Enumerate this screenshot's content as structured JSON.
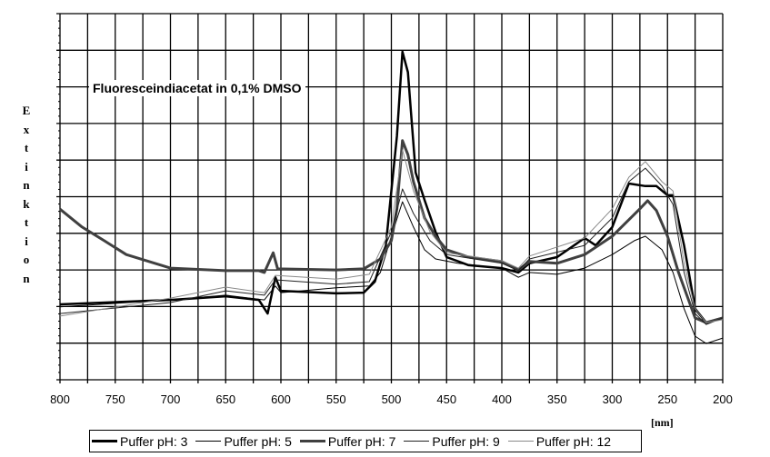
{
  "chart_data": {
    "type": "line",
    "title": "Fluoresceindiacetat in 0,1% DMSO",
    "xlabel": "[nm]",
    "ylabel": "Extinktion",
    "xlim": [
      800,
      200
    ],
    "x_reversed": true,
    "ylim": [
      0,
      10
    ],
    "xticks": [
      "800",
      "750",
      "700",
      "650",
      "600",
      "550",
      "500",
      "450",
      "400",
      "350",
      "300",
      "250",
      "200"
    ],
    "xtick_values": [
      800,
      750,
      700,
      650,
      600,
      550,
      500,
      450,
      400,
      350,
      300,
      250,
      200
    ],
    "grid": true,
    "legend_position": "bottom",
    "series": [
      {
        "name": "Puffer pH: 3",
        "color": "#000000",
        "width": 2.5,
        "points": [
          [
            800,
            2.06
          ],
          [
            700,
            2.18
          ],
          [
            650,
            2.28
          ],
          [
            620,
            2.18
          ],
          [
            612,
            1.81
          ],
          [
            605,
            2.8
          ],
          [
            600,
            2.43
          ],
          [
            550,
            2.36
          ],
          [
            525,
            2.38
          ],
          [
            515,
            2.68
          ],
          [
            505,
            3.67
          ],
          [
            495,
            6.65
          ],
          [
            490,
            8.96
          ],
          [
            485,
            8.4
          ],
          [
            478,
            5.66
          ],
          [
            470,
            4.91
          ],
          [
            460,
            4.04
          ],
          [
            450,
            3.35
          ],
          [
            430,
            3.13
          ],
          [
            400,
            3.05
          ],
          [
            385,
            2.93
          ],
          [
            375,
            3.18
          ],
          [
            350,
            3.35
          ],
          [
            325,
            3.87
          ],
          [
            315,
            3.67
          ],
          [
            300,
            4.17
          ],
          [
            285,
            5.36
          ],
          [
            270,
            5.29
          ],
          [
            260,
            5.29
          ],
          [
            250,
            5.04
          ],
          [
            245,
            5.04
          ],
          [
            235,
            3.67
          ],
          [
            225,
            1.94
          ],
          [
            215,
            1.56
          ],
          [
            200,
            1.69
          ]
        ]
      },
      {
        "name": "Puffer pH: 5",
        "color": "#000000",
        "width": 1,
        "points": [
          [
            800,
            1.99
          ],
          [
            700,
            2.18
          ],
          [
            650,
            2.31
          ],
          [
            615,
            2.18
          ],
          [
            605,
            2.56
          ],
          [
            600,
            2.38
          ],
          [
            550,
            2.51
          ],
          [
            520,
            2.56
          ],
          [
            510,
            2.93
          ],
          [
            500,
            3.92
          ],
          [
            490,
            4.86
          ],
          [
            480,
            4.17
          ],
          [
            470,
            3.55
          ],
          [
            460,
            3.3
          ],
          [
            440,
            3.18
          ],
          [
            400,
            3.05
          ],
          [
            385,
            2.8
          ],
          [
            375,
            2.93
          ],
          [
            350,
            2.88
          ],
          [
            325,
            3.05
          ],
          [
            300,
            3.42
          ],
          [
            280,
            3.8
          ],
          [
            270,
            3.92
          ],
          [
            255,
            3.55
          ],
          [
            245,
            2.93
          ],
          [
            235,
            1.94
          ],
          [
            225,
            1.19
          ],
          [
            215,
            0.99
          ],
          [
            200,
            1.14
          ]
        ]
      },
      {
        "name": "Puffer pH: 7",
        "color": "#404040",
        "width": 3,
        "points": [
          [
            800,
            4.66
          ],
          [
            780,
            4.17
          ],
          [
            760,
            3.8
          ],
          [
            740,
            3.42
          ],
          [
            700,
            3.05
          ],
          [
            650,
            2.98
          ],
          [
            620,
            2.98
          ],
          [
            615,
            2.93
          ],
          [
            607,
            3.47
          ],
          [
            603,
            3.03
          ],
          [
            550,
            3.0
          ],
          [
            525,
            3.03
          ],
          [
            510,
            3.3
          ],
          [
            500,
            3.8
          ],
          [
            495,
            4.67
          ],
          [
            490,
            6.53
          ],
          [
            485,
            6.15
          ],
          [
            480,
            5.41
          ],
          [
            470,
            4.42
          ],
          [
            460,
            3.92
          ],
          [
            450,
            3.55
          ],
          [
            430,
            3.35
          ],
          [
            400,
            3.23
          ],
          [
            385,
            3.0
          ],
          [
            375,
            3.23
          ],
          [
            350,
            3.18
          ],
          [
            325,
            3.42
          ],
          [
            300,
            3.92
          ],
          [
            275,
            4.67
          ],
          [
            268,
            4.89
          ],
          [
            260,
            4.62
          ],
          [
            250,
            3.92
          ],
          [
            240,
            2.93
          ],
          [
            225,
            1.69
          ],
          [
            215,
            1.56
          ],
          [
            200,
            1.69
          ]
        ]
      },
      {
        "name": "Puffer pH: 9",
        "color": "#222222",
        "width": 1,
        "points": [
          [
            800,
            1.81
          ],
          [
            700,
            2.11
          ],
          [
            650,
            2.43
          ],
          [
            615,
            2.31
          ],
          [
            605,
            2.73
          ],
          [
            550,
            2.61
          ],
          [
            520,
            2.68
          ],
          [
            500,
            4.04
          ],
          [
            490,
            5.21
          ],
          [
            480,
            4.54
          ],
          [
            465,
            3.8
          ],
          [
            450,
            3.42
          ],
          [
            400,
            3.18
          ],
          [
            385,
            2.98
          ],
          [
            375,
            3.3
          ],
          [
            325,
            3.67
          ],
          [
            300,
            4.42
          ],
          [
            285,
            5.41
          ],
          [
            270,
            5.78
          ],
          [
            255,
            5.29
          ],
          [
            245,
            4.79
          ],
          [
            235,
            2.93
          ],
          [
            225,
            1.81
          ],
          [
            215,
            1.51
          ],
          [
            200,
            1.69
          ]
        ]
      },
      {
        "name": "Puffer pH: 12",
        "color": "#8a8a8a",
        "width": 1,
        "points": [
          [
            800,
            1.74
          ],
          [
            700,
            2.23
          ],
          [
            650,
            2.53
          ],
          [
            615,
            2.38
          ],
          [
            605,
            2.85
          ],
          [
            550,
            2.75
          ],
          [
            520,
            2.88
          ],
          [
            500,
            4.17
          ],
          [
            490,
            6.28
          ],
          [
            480,
            5.16
          ],
          [
            465,
            4.04
          ],
          [
            450,
            3.47
          ],
          [
            400,
            3.25
          ],
          [
            385,
            3.05
          ],
          [
            375,
            3.38
          ],
          [
            325,
            3.87
          ],
          [
            300,
            4.67
          ],
          [
            285,
            5.53
          ],
          [
            270,
            5.96
          ],
          [
            255,
            5.41
          ],
          [
            245,
            5.16
          ],
          [
            235,
            3.18
          ],
          [
            225,
            1.94
          ],
          [
            215,
            1.56
          ],
          [
            200,
            1.64
          ]
        ]
      }
    ]
  }
}
